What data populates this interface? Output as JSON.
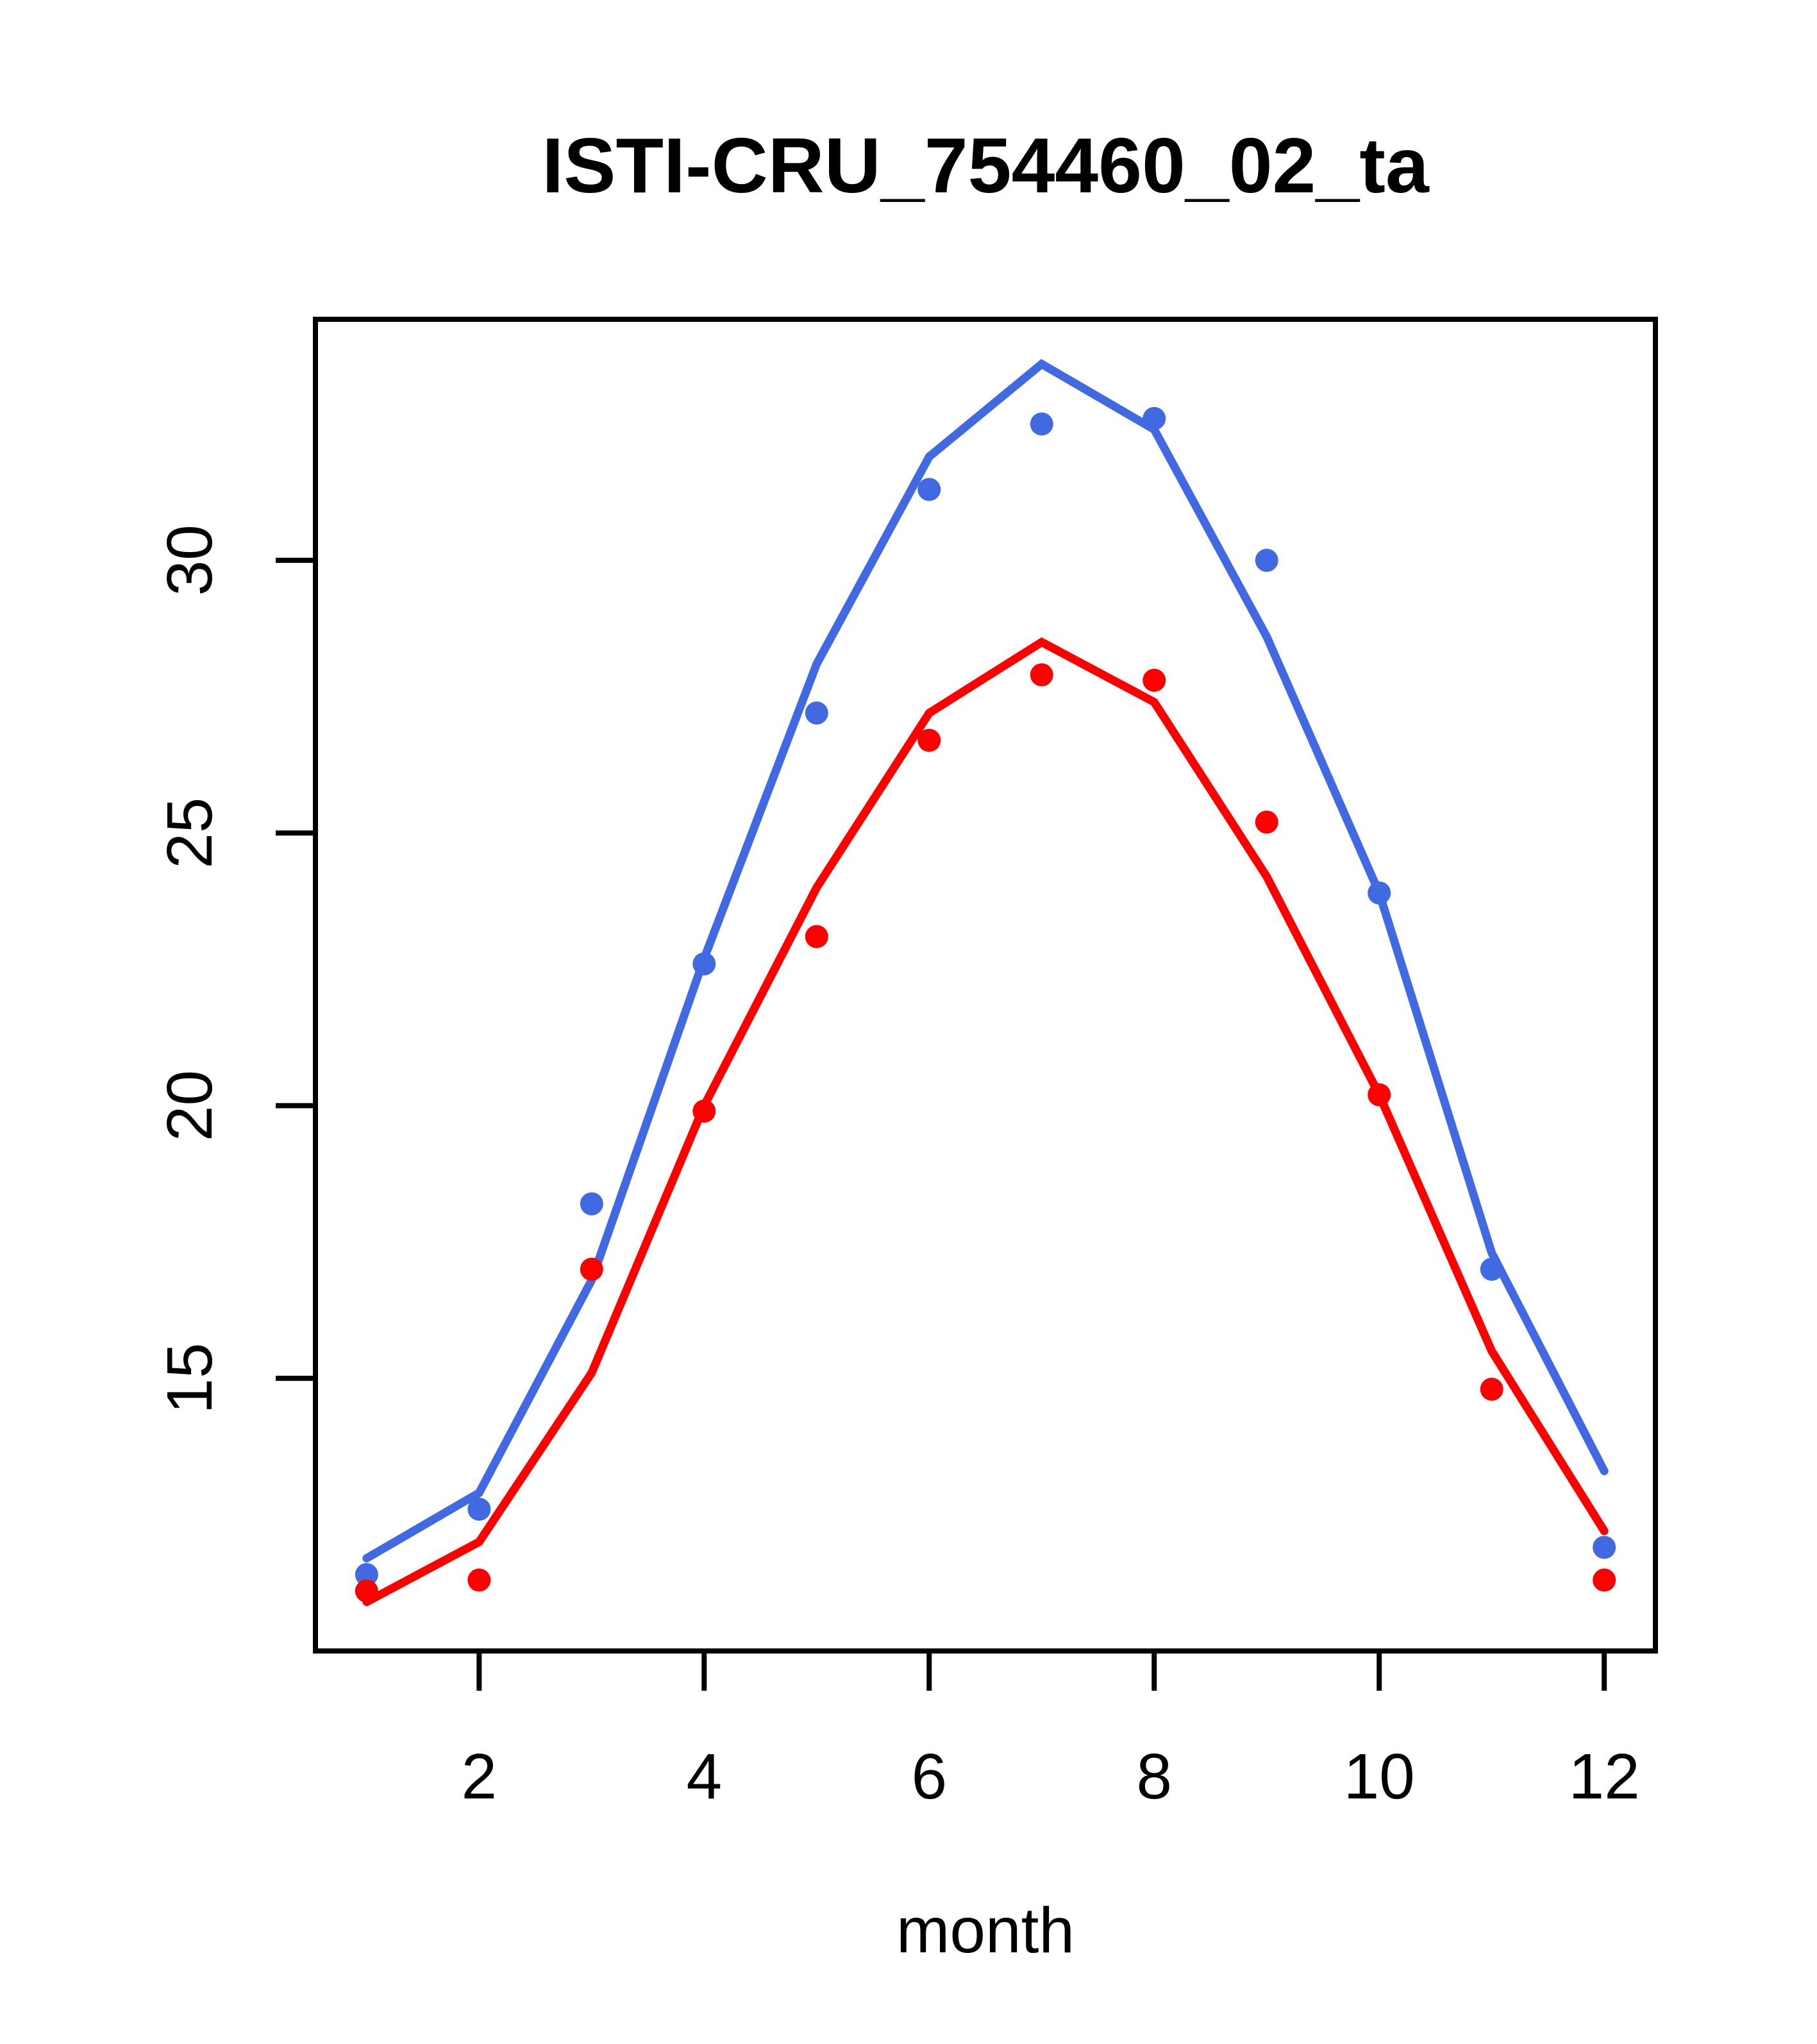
{
  "title": "ISTI-CRU_754460_02_ta",
  "xlabel": "month",
  "colors": {
    "blue": "#4169E1",
    "red": "#FF0000",
    "axis": "#000000",
    "background": "#FFFFFF"
  },
  "chart_data": {
    "type": "line",
    "title": "ISTI-CRU_754460_02_ta",
    "xlabel": "month",
    "ylabel": "",
    "x": [
      1,
      2,
      3,
      4,
      5,
      6,
      7,
      8,
      9,
      10,
      11,
      12
    ],
    "x_ticks": [
      2,
      4,
      6,
      8,
      10,
      12
    ],
    "y_ticks": [
      15,
      20,
      25,
      30
    ],
    "xlim": [
      0.545,
      12.455
    ],
    "ylim": [
      10.0,
      34.42
    ],
    "grid": false,
    "legend_position": "none",
    "series": [
      {
        "name": "blue-line",
        "draw": "line",
        "color": "#4169E1",
        "values": [
          11.7,
          12.9,
          16.8,
          22.7,
          28.1,
          31.9,
          33.6,
          32.4,
          28.6,
          23.9,
          17.3,
          13.3
        ]
      },
      {
        "name": "blue-points",
        "draw": "points",
        "color": "#4169E1",
        "values": [
          11.4,
          12.6,
          18.2,
          22.6,
          27.2,
          31.3,
          32.5,
          32.6,
          30.0,
          23.9,
          17.0,
          11.9
        ]
      },
      {
        "name": "red-line",
        "draw": "line",
        "color": "#FF0000",
        "values": [
          10.9,
          12.0,
          15.1,
          20.0,
          24.0,
          27.2,
          28.5,
          27.4,
          24.2,
          20.2,
          15.5,
          12.2
        ]
      },
      {
        "name": "red-points",
        "draw": "points",
        "color": "#FF0000",
        "values": [
          11.1,
          11.3,
          17.0,
          19.9,
          23.1,
          26.7,
          27.9,
          27.8,
          25.2,
          20.2,
          14.8,
          11.3
        ]
      }
    ]
  }
}
